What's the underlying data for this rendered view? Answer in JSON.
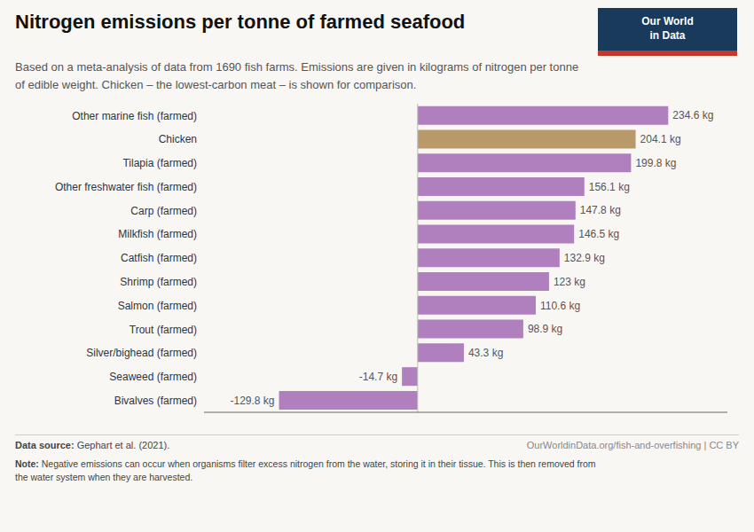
{
  "chart_data": {
    "type": "bar",
    "orientation": "horizontal",
    "title": "Nitrogen emissions per tonne of farmed seafood",
    "subtitle": "Based on a meta-analysis of data from 1690 fish farms. Emissions are given in kilograms of nitrogen per tonne\nof edible weight. Chicken – the lowest-carbon meat – is shown for comparison.",
    "categories": [
      "Other marine fish (farmed)",
      "Chicken",
      "Tilapia (farmed)",
      "Other freshwater fish (farmed)",
      "Carp (farmed)",
      "Milkfish (farmed)",
      "Catfish (farmed)",
      "Shrimp (farmed)",
      "Salmon (farmed)",
      "Trout (farmed)",
      "Silver/bighead (farmed)",
      "Seaweed (farmed)",
      "Bivalves (farmed)"
    ],
    "values": [
      234.6,
      204.1,
      199.8,
      156.1,
      147.8,
      146.5,
      132.9,
      123.0,
      110.6,
      98.9,
      43.3,
      -14.7,
      -129.8
    ],
    "value_labels": [
      "234.6 kg",
      "204.1 kg",
      "199.8 kg",
      "156.1 kg",
      "147.8 kg",
      "146.5 kg",
      "132.9 kg",
      "123 kg",
      "110.6 kg",
      "98.9 kg",
      "43.3 kg",
      "-14.7 kg",
      "-129.8 kg"
    ],
    "colors": [
      "#b07fbe",
      "#b8996a",
      "#b07fbe",
      "#b07fbe",
      "#b07fbe",
      "#b07fbe",
      "#b07fbe",
      "#b07fbe",
      "#b07fbe",
      "#b07fbe",
      "#b07fbe",
      "#b07fbe",
      "#b07fbe"
    ],
    "xlim": [
      -200,
      290
    ],
    "grid": false,
    "data_labels": true,
    "tick_labels": "y",
    "source": "Data source: Gephart et al. (2021).",
    "url": "OurWorldinData.org/fish-and-overfishing | CC BY",
    "note": "Note: Negative emissions can occur when organisms filter excess nitrogen from the water, storing it in their tissue. This is then removed from\nthe water system when they are harvested.",
    "logo": [
      "Our World",
      "in Data"
    ]
  }
}
